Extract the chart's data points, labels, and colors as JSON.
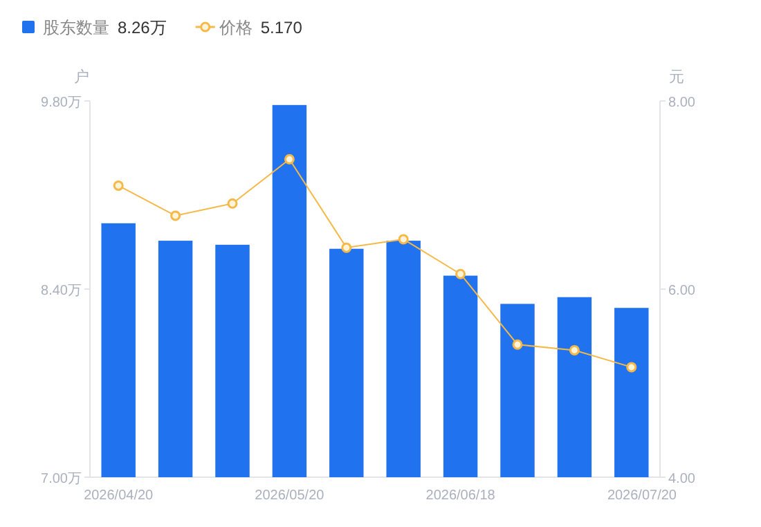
{
  "chart_data": {
    "type": "bar",
    "categories": [
      "2026/04/20",
      null,
      null,
      "2026/05/20",
      null,
      null,
      "2026/06/18",
      null,
      null,
      "2026/07/20"
    ],
    "ylabel": "户",
    "y2label": "元",
    "ylim": [
      7.0,
      9.8
    ],
    "yticks": [
      {
        "value": 7.0,
        "label": "7.00万"
      },
      {
        "value": 8.4,
        "label": "8.40万"
      },
      {
        "value": 9.8,
        "label": "9.80万"
      }
    ],
    "y2lim": [
      4,
      8
    ],
    "y2ticks": [
      {
        "value": 4,
        "label": "4.00"
      },
      {
        "value": 6,
        "label": "6.00"
      },
      {
        "value": 8,
        "label": "8.00"
      }
    ],
    "legend": "top left",
    "grid": false,
    "series": [
      {
        "name": "股东数量 8.26万",
        "color": "#2172ee",
        "values": [
          8.89,
          8.76,
          8.73,
          9.77,
          8.7,
          8.76,
          8.5,
          8.29,
          8.34,
          8.26
        ]
      },
      {
        "name": "价格 5.170",
        "type": "line",
        "axis": "y2",
        "color": "#f5b94a",
        "marker": "circle",
        "values": [
          7.1,
          6.78,
          6.91,
          7.38,
          6.44,
          6.53,
          6.16,
          5.41,
          5.35,
          5.17
        ]
      }
    ]
  }
}
